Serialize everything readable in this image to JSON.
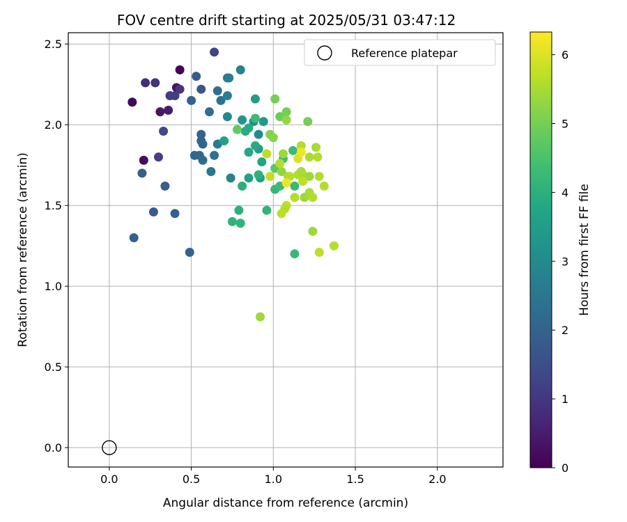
{
  "chart_data": {
    "type": "scatter",
    "title": "FOV centre drift starting at 2025/05/31 03:47:12",
    "xlabel": "Angular distance from reference (arcmin)",
    "ylabel": "Rotation from reference (arcmin)",
    "xlim": [
      -0.25,
      2.4
    ],
    "ylim": [
      -0.12,
      2.57
    ],
    "xticks": [
      0.0,
      0.5,
      1.0,
      1.5,
      2.0
    ],
    "xtick_labels": [
      "0.0",
      "0.5",
      "1.0",
      "1.5",
      "2.0"
    ],
    "yticks": [
      0.0,
      0.5,
      1.0,
      1.5,
      2.0,
      2.5
    ],
    "ytick_labels": [
      "0.0",
      "0.5",
      "1.0",
      "1.5",
      "2.0",
      "2.5"
    ],
    "grid": true,
    "legend": {
      "position": "top-right",
      "entries": [
        "Reference platepar"
      ]
    },
    "reference_point": {
      "x": 0.0,
      "y": 0.0,
      "label": "Reference platepar"
    },
    "colorbar": {
      "label": "Hours from first FF file",
      "min": 0,
      "max": 6.33,
      "ticks": [
        0,
        1,
        2,
        3,
        4,
        5,
        6
      ],
      "tick_labels": [
        "0",
        "1",
        "2",
        "3",
        "4",
        "5",
        "6"
      ],
      "colormap": "viridis"
    },
    "points": [
      {
        "x": 0.43,
        "y": 2.34,
        "t": 0.0
      },
      {
        "x": 0.14,
        "y": 2.14,
        "t": 0.1
      },
      {
        "x": 0.21,
        "y": 1.78,
        "t": 0.2
      },
      {
        "x": 0.41,
        "y": 2.23,
        "t": 0.3
      },
      {
        "x": 0.31,
        "y": 2.08,
        "t": 0.4
      },
      {
        "x": 0.36,
        "y": 2.09,
        "t": 0.5
      },
      {
        "x": 0.22,
        "y": 2.26,
        "t": 0.8
      },
      {
        "x": 0.28,
        "y": 2.26,
        "t": 0.9
      },
      {
        "x": 0.43,
        "y": 2.22,
        "t": 1.0
      },
      {
        "x": 0.37,
        "y": 2.18,
        "t": 1.1
      },
      {
        "x": 0.4,
        "y": 2.18,
        "t": 1.15
      },
      {
        "x": 0.3,
        "y": 1.8,
        "t": 1.2
      },
      {
        "x": 0.64,
        "y": 2.45,
        "t": 1.3
      },
      {
        "x": 0.33,
        "y": 1.96,
        "t": 1.4
      },
      {
        "x": 0.56,
        "y": 2.22,
        "t": 1.7
      },
      {
        "x": 0.53,
        "y": 2.3,
        "t": 1.8
      },
      {
        "x": 0.27,
        "y": 1.46,
        "t": 1.8
      },
      {
        "x": 0.2,
        "y": 1.7,
        "t": 1.9
      },
      {
        "x": 0.34,
        "y": 1.62,
        "t": 1.9
      },
      {
        "x": 0.4,
        "y": 1.45,
        "t": 1.9
      },
      {
        "x": 0.15,
        "y": 1.3,
        "t": 1.95
      },
      {
        "x": 0.49,
        "y": 1.21,
        "t": 2.0
      },
      {
        "x": 0.5,
        "y": 2.15,
        "t": 2.0
      },
      {
        "x": 0.56,
        "y": 1.94,
        "t": 2.0
      },
      {
        "x": 0.56,
        "y": 1.9,
        "t": 2.0
      },
      {
        "x": 0.57,
        "y": 1.88,
        "t": 2.0
      },
      {
        "x": 0.52,
        "y": 1.81,
        "t": 2.1
      },
      {
        "x": 0.55,
        "y": 1.81,
        "t": 2.1
      },
      {
        "x": 0.57,
        "y": 1.78,
        "t": 2.2
      },
      {
        "x": 0.61,
        "y": 2.08,
        "t": 2.3
      },
      {
        "x": 0.66,
        "y": 2.21,
        "t": 2.3
      },
      {
        "x": 0.68,
        "y": 2.15,
        "t": 2.4
      },
      {
        "x": 0.64,
        "y": 1.81,
        "t": 2.4
      },
      {
        "x": 0.62,
        "y": 1.71,
        "t": 2.5
      },
      {
        "x": 0.66,
        "y": 1.88,
        "t": 2.6
      },
      {
        "x": 0.72,
        "y": 2.29,
        "t": 2.6
      },
      {
        "x": 0.73,
        "y": 2.29,
        "t": 2.7
      },
      {
        "x": 0.72,
        "y": 2.18,
        "t": 2.7
      },
      {
        "x": 0.8,
        "y": 2.34,
        "t": 2.8
      },
      {
        "x": 0.72,
        "y": 2.05,
        "t": 2.9
      },
      {
        "x": 0.74,
        "y": 1.67,
        "t": 2.8
      },
      {
        "x": 0.91,
        "y": 1.94,
        "t": 3.0
      },
      {
        "x": 0.88,
        "y": 2.02,
        "t": 3.1
      },
      {
        "x": 0.81,
        "y": 2.03,
        "t": 3.3
      },
      {
        "x": 0.94,
        "y": 2.02,
        "t": 3.4
      },
      {
        "x": 0.89,
        "y": 2.16,
        "t": 3.5
      },
      {
        "x": 0.7,
        "y": 1.9,
        "t": 3.6
      },
      {
        "x": 0.85,
        "y": 1.67,
        "t": 3.6
      },
      {
        "x": 0.92,
        "y": 1.67,
        "t": 3.6
      },
      {
        "x": 0.91,
        "y": 1.85,
        "t": 3.5
      },
      {
        "x": 0.93,
        "y": 1.77,
        "t": 3.7
      },
      {
        "x": 0.85,
        "y": 1.83,
        "t": 3.8
      },
      {
        "x": 0.83,
        "y": 1.96,
        "t": 3.9
      },
      {
        "x": 0.85,
        "y": 1.98,
        "t": 3.9
      },
      {
        "x": 0.89,
        "y": 1.87,
        "t": 3.9
      },
      {
        "x": 0.91,
        "y": 1.69,
        "t": 4.0
      },
      {
        "x": 0.81,
        "y": 1.62,
        "t": 4.0
      },
      {
        "x": 0.79,
        "y": 1.47,
        "t": 4.0
      },
      {
        "x": 0.75,
        "y": 1.4,
        "t": 4.1
      },
      {
        "x": 0.8,
        "y": 1.39,
        "t": 4.1
      },
      {
        "x": 0.96,
        "y": 1.47,
        "t": 4.1
      },
      {
        "x": 0.89,
        "y": 2.04,
        "t": 4.3
      },
      {
        "x": 1.01,
        "y": 1.6,
        "t": 4.2
      },
      {
        "x": 1.13,
        "y": 1.2,
        "t": 4.2
      },
      {
        "x": 1.13,
        "y": 1.62,
        "t": 4.2
      },
      {
        "x": 1.04,
        "y": 1.62,
        "t": 4.3
      },
      {
        "x": 1.12,
        "y": 1.84,
        "t": 4.3
      },
      {
        "x": 1.06,
        "y": 1.79,
        "t": 4.3
      },
      {
        "x": 0.78,
        "y": 1.97,
        "t": 4.8
      },
      {
        "x": 1.01,
        "y": 1.73,
        "t": 4.7
      },
      {
        "x": 1.01,
        "y": 2.16,
        "t": 5.0
      },
      {
        "x": 1.04,
        "y": 2.05,
        "t": 4.9
      },
      {
        "x": 1.08,
        "y": 2.08,
        "t": 5.0
      },
      {
        "x": 1.21,
        "y": 2.02,
        "t": 5.0
      },
      {
        "x": 0.98,
        "y": 1.94,
        "t": 5.1
      },
      {
        "x": 1.0,
        "y": 1.92,
        "t": 5.2
      },
      {
        "x": 1.08,
        "y": 2.03,
        "t": 5.3
      },
      {
        "x": 1.06,
        "y": 1.82,
        "t": 5.4
      },
      {
        "x": 1.05,
        "y": 1.71,
        "t": 5.3
      },
      {
        "x": 1.04,
        "y": 1.76,
        "t": 5.6
      },
      {
        "x": 0.98,
        "y": 1.68,
        "t": 5.7
      },
      {
        "x": 0.96,
        "y": 1.82,
        "t": 5.7
      },
      {
        "x": 1.09,
        "y": 1.68,
        "t": 5.5
      },
      {
        "x": 1.1,
        "y": 1.68,
        "t": 5.6
      },
      {
        "x": 1.13,
        "y": 1.55,
        "t": 5.6
      },
      {
        "x": 1.08,
        "y": 1.5,
        "t": 5.7
      },
      {
        "x": 1.07,
        "y": 1.48,
        "t": 5.6
      },
      {
        "x": 1.05,
        "y": 1.45,
        "t": 5.7
      },
      {
        "x": 1.15,
        "y": 1.69,
        "t": 5.6
      },
      {
        "x": 1.17,
        "y": 1.87,
        "t": 5.6
      },
      {
        "x": 1.17,
        "y": 1.71,
        "t": 5.5
      },
      {
        "x": 1.18,
        "y": 1.69,
        "t": 5.5
      },
      {
        "x": 1.19,
        "y": 1.55,
        "t": 5.4
      },
      {
        "x": 1.18,
        "y": 1.65,
        "t": 5.7
      },
      {
        "x": 1.22,
        "y": 1.8,
        "t": 5.5
      },
      {
        "x": 1.22,
        "y": 1.68,
        "t": 5.4
      },
      {
        "x": 1.22,
        "y": 1.58,
        "t": 5.5
      },
      {
        "x": 1.24,
        "y": 1.55,
        "t": 5.6
      },
      {
        "x": 1.26,
        "y": 1.86,
        "t": 5.5
      },
      {
        "x": 1.27,
        "y": 1.8,
        "t": 5.6
      },
      {
        "x": 1.28,
        "y": 1.68,
        "t": 5.6
      },
      {
        "x": 1.31,
        "y": 1.62,
        "t": 5.6
      },
      {
        "x": 1.24,
        "y": 1.34,
        "t": 5.4
      },
      {
        "x": 1.28,
        "y": 1.21,
        "t": 5.7
      },
      {
        "x": 1.37,
        "y": 1.25,
        "t": 5.6
      },
      {
        "x": 0.92,
        "y": 0.81,
        "t": 5.4
      },
      {
        "x": 1.15,
        "y": 1.79,
        "t": 6.0
      },
      {
        "x": 1.17,
        "y": 1.83,
        "t": 6.2
      },
      {
        "x": 1.08,
        "y": 1.64,
        "t": 6.2
      }
    ]
  }
}
